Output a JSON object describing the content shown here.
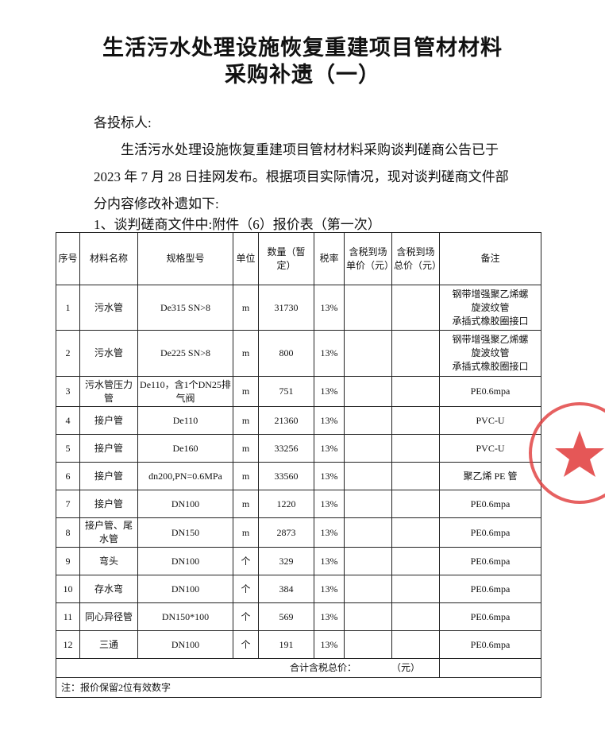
{
  "header": {
    "title": [
      "生活污水处理设施恢复重建项目管材材料",
      "采购补遗（一）"
    ]
  },
  "salutation": "各投标人:",
  "body": "生活污水处理设施恢复重建项目管材材料采购谈判磋商公告已于 2023 年 7 月 28 日挂网发布。根据项目实际情况，现对谈判磋商文件部分内容修改补遗如下:",
  "item": "1、谈判磋商文件中:附件（6）报价表（第一次）",
  "table": {
    "headers": [
      "序号",
      "材料名称",
      "规格型号",
      "单位",
      "数量（暂定）",
      "税率",
      "含税到场单价（元）",
      "含税到场总价（元）",
      "备注"
    ],
    "rows": [
      {
        "no": 1,
        "name": "污水管",
        "spec": "De315 SN>8",
        "unit": "m",
        "qty": 31730,
        "tax": "13%",
        "remark": [
          "钢带增强聚乙烯螺",
          "旋波纹管",
          "承插式橡胶圈接口"
        ]
      },
      {
        "no": 2,
        "name": "污水管",
        "spec": "De225 SN>8",
        "unit": "m",
        "qty": 800,
        "tax": "13%",
        "remark": [
          "钢带增强聚乙烯螺",
          "旋波纹管",
          "承插式橡胶圈接口"
        ]
      },
      {
        "no": 3,
        "name": "污水管压力管",
        "spec": "De110，含1个DN25排气阀",
        "unit": "m",
        "qty": 751,
        "tax": "13%",
        "remark": [
          "PE0.6mpa"
        ]
      },
      {
        "no": 4,
        "name": "接户管",
        "spec": "De110",
        "unit": "m",
        "qty": 21360,
        "tax": "13%",
        "remark": [
          "PVC-U"
        ]
      },
      {
        "no": 5,
        "name": "接户管",
        "spec": "De160",
        "unit": "m",
        "qty": 33256,
        "tax": "13%",
        "remark": [
          "PVC-U"
        ]
      },
      {
        "no": 6,
        "name": "接户管",
        "spec": "dn200,PN=0.6MPa",
        "unit": "m",
        "qty": 33560,
        "tax": "13%",
        "remark": [
          "聚乙烯 PE 管"
        ]
      },
      {
        "no": 7,
        "name": "接户管",
        "spec": "DN100",
        "unit": "m",
        "qty": 1220,
        "tax": "13%",
        "remark": [
          "PE0.6mpa"
        ]
      },
      {
        "no": 8,
        "name": "接户管、尾水管",
        "spec": "DN150",
        "unit": "m",
        "qty": 2873,
        "tax": "13%",
        "remark": [
          "PE0.6mpa"
        ]
      },
      {
        "no": 9,
        "name": "弯头",
        "spec": "DN100",
        "unit": "个",
        "qty": 329,
        "tax": "13%",
        "remark": [
          "PE0.6mpa"
        ]
      },
      {
        "no": 10,
        "name": "存水弯",
        "spec": "DN100",
        "unit": "个",
        "qty": 384,
        "tax": "13%",
        "remark": [
          "PE0.6mpa"
        ]
      },
      {
        "no": 11,
        "name": "同心异径管",
        "spec": "DN150*100",
        "unit": "个",
        "qty": 569,
        "tax": "13%",
        "remark": [
          "PE0.6mpa"
        ]
      },
      {
        "no": 12,
        "name": "三通",
        "spec": "DN100",
        "unit": "个",
        "qty": 191,
        "tax": "13%",
        "remark": [
          "PE0.6mpa"
        ]
      }
    ],
    "total_label": "合计含税总价：",
    "total_unit": "（元）",
    "note": "注：报价保留2位有效数字"
  }
}
